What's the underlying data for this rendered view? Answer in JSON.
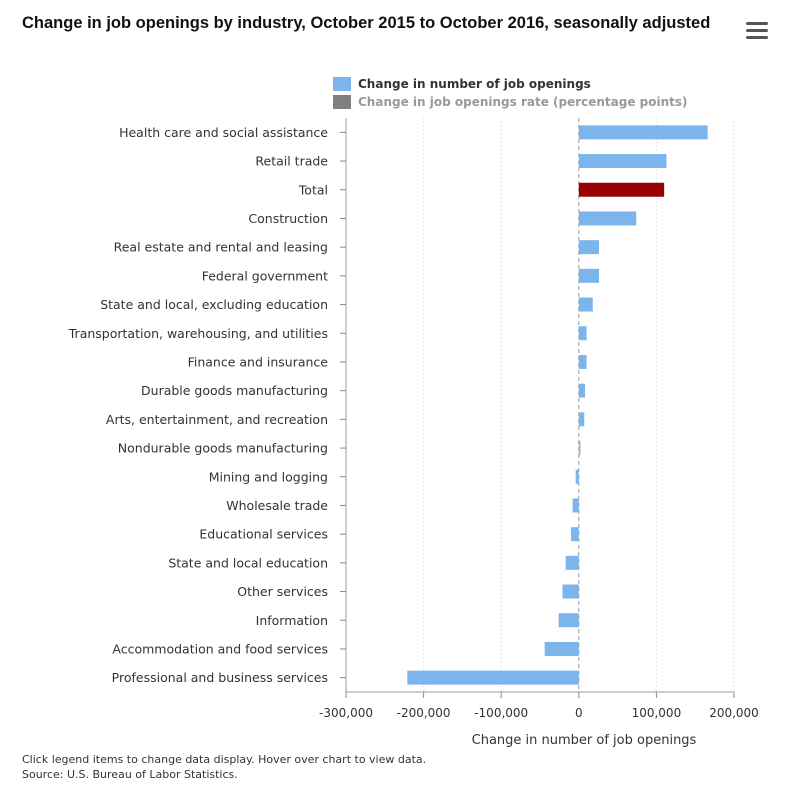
{
  "title": "Change in job openings by industry, October 2015 to October 2016, seasonally adjusted",
  "menu_icon": "hamburger-menu-icon",
  "footer": {
    "note": "Click legend items to change data display. Hover over chart to view data.",
    "source": "Source: U.S. Bureau of Labor Statistics."
  },
  "colors": {
    "bar": "#7cb5ec",
    "total": "#990000",
    "rate_legend": "#808080"
  },
  "chart_data": {
    "type": "bar",
    "orientation": "horizontal",
    "title": "Change in job openings by industry, October 2015 to October 2016, seasonally adjusted",
    "categories": [
      "Health care and social assistance",
      "Retail trade",
      "Total",
      "Construction",
      "Real estate and rental and leasing",
      "Federal government",
      "State and local, excluding education",
      "Transportation, warehousing, and utilities",
      "Finance and insurance",
      "Durable goods manufacturing",
      "Arts, entertainment, and recreation",
      "Nondurable goods manufacturing",
      "Mining and logging",
      "Wholesale trade",
      "Educational services",
      "State and local education",
      "Other services",
      "Information",
      "Accommodation and food services",
      "Professional and business services"
    ],
    "series": [
      {
        "name": "Change in number of job openings",
        "values": [
          166000,
          113000,
          110000,
          74000,
          26000,
          26000,
          18000,
          10000,
          10000,
          8000,
          7000,
          2000,
          -4000,
          -8000,
          -10000,
          -17000,
          -21000,
          -26000,
          -44000,
          -221000
        ]
      }
    ],
    "legend": [
      "Change in number of job openings",
      "Change in job openings rate (percentage points)"
    ],
    "legend_position": "top",
    "highlight_category": "Total",
    "xlabel": "Change in number of job openings",
    "xlim": [
      -300000,
      200000
    ],
    "xticks": [
      -300000,
      -200000,
      -100000,
      0,
      100000,
      200000
    ],
    "xtick_labels": [
      "-300,000",
      "-200,000",
      "-100,000",
      "0",
      "100,000",
      "200,000"
    ],
    "grid": "vertical dotted"
  }
}
